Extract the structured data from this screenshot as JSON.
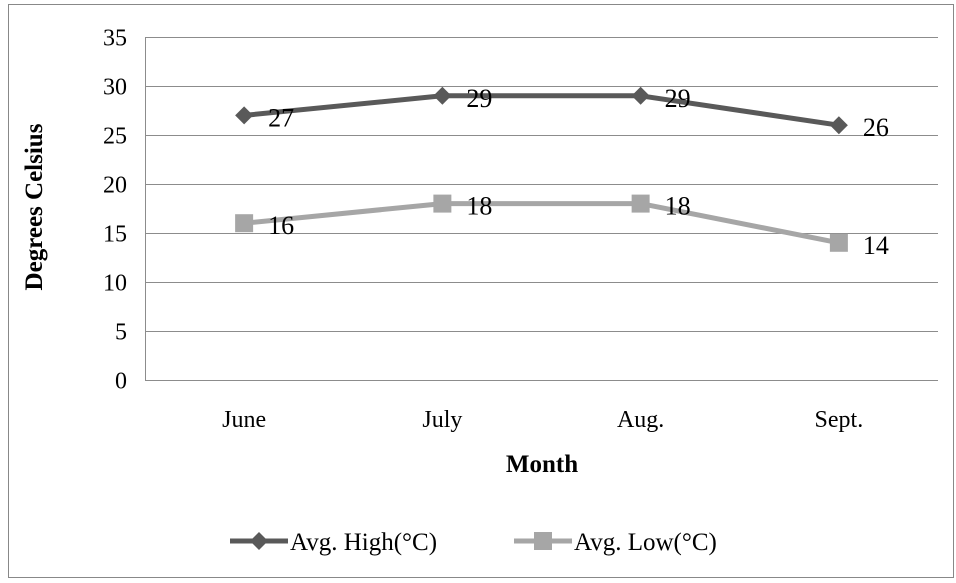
{
  "chart_data": {
    "type": "line",
    "categories": [
      "June",
      "July",
      "Aug.",
      "Sept."
    ],
    "series": [
      {
        "name": "Avg. High(°C)",
        "values": [
          27,
          29,
          29,
          26
        ],
        "color": "#595959",
        "marker": "diamond"
      },
      {
        "name": "Avg. Low(°C)",
        "values": [
          16,
          18,
          18,
          14
        ],
        "color": "#a6a6a6",
        "marker": "square"
      }
    ],
    "title": "",
    "xlabel": "Month",
    "ylabel": "Degrees Celsius",
    "ylim": [
      0,
      35
    ],
    "yticks": [
      0,
      5,
      10,
      15,
      20,
      25,
      30,
      35
    ],
    "grid": true,
    "data_labels": true,
    "legend": "bottom"
  }
}
